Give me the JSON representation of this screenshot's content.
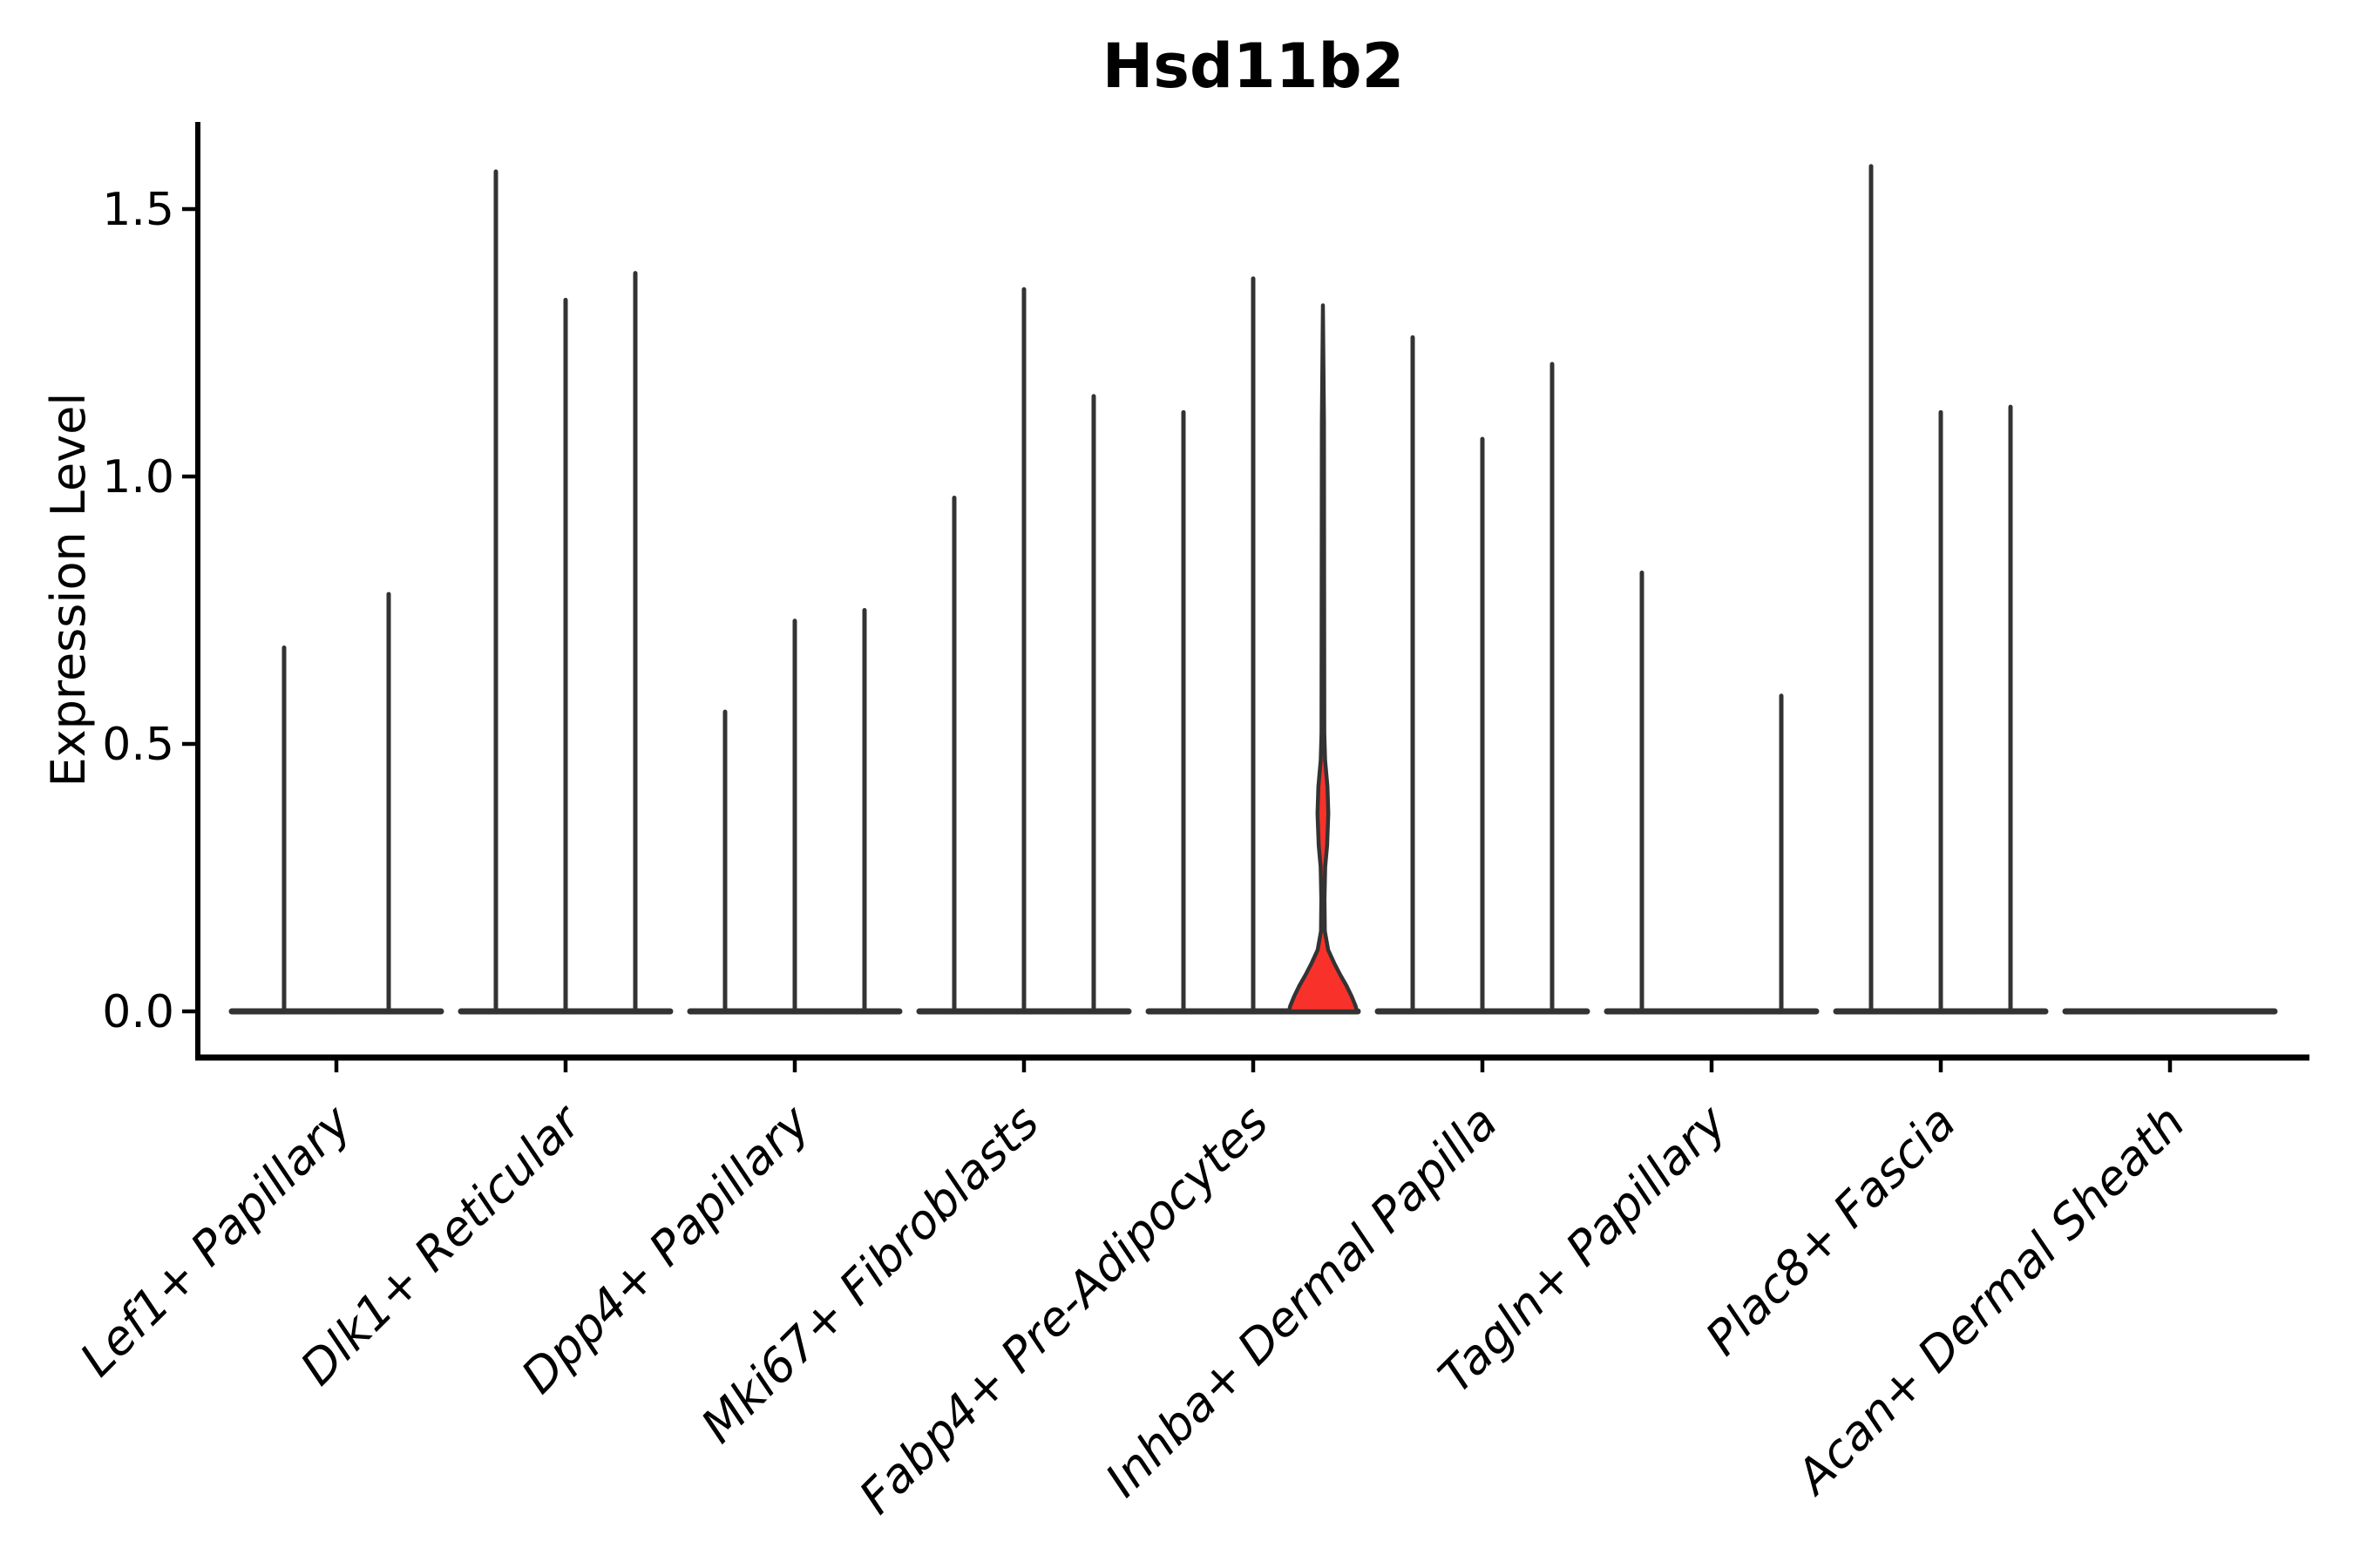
{
  "chart_data": {
    "type": "violin",
    "title": "Hsd11b2",
    "xlabel": "",
    "ylabel": "Expression Level",
    "yticks": [
      0.0,
      0.5,
      1.0,
      1.5
    ],
    "ylim": [
      -0.09,
      1.66
    ],
    "grid": false,
    "legend": "none",
    "categories": [
      "Lef1+ Papillary",
      "Dlk1+ Reticular",
      "Dpp4+ Papillary",
      "Mki67+ Fibroblasts",
      "Fabp4+ Pre-Adipocytes",
      "Inhba+ Dermal Papilla",
      "Tagln+ Papillary",
      "Plac8+ Fascia",
      "Acan+ Dermal Sheath"
    ],
    "groups": [
      {
        "category": "Lef1+ Papillary",
        "violins": [
          {
            "max": 0.68
          },
          {
            "max": 0.78
          }
        ]
      },
      {
        "category": "Dlk1+ Reticular",
        "violins": [
          {
            "max": 1.57
          },
          {
            "max": 1.33
          },
          {
            "max": 1.38
          }
        ]
      },
      {
        "category": "Dpp4+ Papillary",
        "violins": [
          {
            "max": 0.56
          },
          {
            "max": 0.73
          },
          {
            "max": 0.75
          }
        ]
      },
      {
        "category": "Mki67+ Fibroblasts",
        "violins": [
          {
            "max": 0.96
          },
          {
            "max": 1.35
          },
          {
            "max": 1.15
          }
        ]
      },
      {
        "category": "Fabp4+ Pre-Adipocytes",
        "violins": [
          {
            "max": 1.12
          },
          {
            "max": 1.37
          },
          {
            "max": 1.32,
            "highlighted": true,
            "profile": [
              [
                1.32,
                0.0
              ],
              [
                1.1,
                1.2
              ],
              [
                0.8,
                1.4
              ],
              [
                0.52,
                1.6
              ],
              [
                0.47,
                2.5
              ],
              [
                0.42,
                5.2
              ],
              [
                0.37,
                6.2
              ],
              [
                0.31,
                4.8
              ],
              [
                0.27,
                2.6
              ],
              [
                0.21,
                1.8
              ],
              [
                0.15,
                2.2
              ],
              [
                0.115,
                6.0
              ],
              [
                0.09,
                13.0
              ],
              [
                0.068,
                20.0
              ],
              [
                0.048,
                27.0
              ],
              [
                0.028,
                33.0
              ],
              [
                0.01,
                37.5
              ],
              [
                0.0,
                39.0
              ]
            ]
          }
        ]
      },
      {
        "category": "Inhba+ Dermal Papilla",
        "violins": [
          {
            "max": 1.26
          },
          {
            "max": 1.07
          },
          {
            "max": 1.21
          }
        ]
      },
      {
        "category": "Tagln+ Papillary",
        "violins": [
          {
            "max": 0.82
          },
          {
            "max": 0.0
          },
          {
            "max": 0.59
          }
        ]
      },
      {
        "category": "Plac8+ Fascia",
        "violins": [
          {
            "max": 1.58
          },
          {
            "max": 1.12
          },
          {
            "max": 1.13
          }
        ]
      },
      {
        "category": "Acan+ Dermal Sheath",
        "violins": [
          {
            "max": 0.0
          },
          {
            "max": 0.0
          },
          {
            "max": 0.0
          }
        ]
      }
    ],
    "colors": {
      "violin_stroke": "#333333",
      "highlight_fill": "#F8322A",
      "axis": "#000000",
      "text": "#000000",
      "background": "#ffffff"
    }
  }
}
